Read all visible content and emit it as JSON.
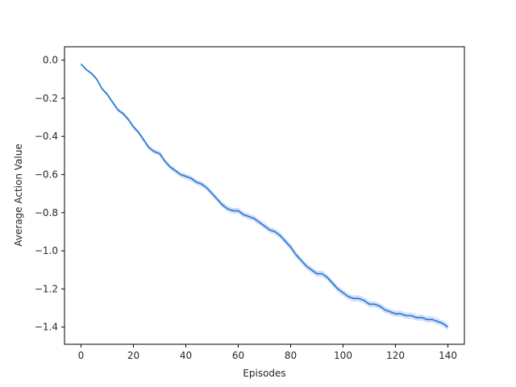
{
  "chart_data": {
    "type": "line",
    "title": "",
    "xlabel": "Episodes",
    "ylabel": "Average Action Value",
    "xlim": [
      -6.3,
      146.3
    ],
    "ylim": [
      -1.49,
      0.07
    ],
    "xticks": [
      0,
      20,
      40,
      60,
      80,
      100,
      120,
      140
    ],
    "yticks": [
      0.0,
      -0.2,
      -0.4,
      -0.6,
      -0.8,
      -1.0,
      -1.2,
      -1.4
    ],
    "ytick_labels": [
      "0.0",
      "−0.2",
      "−0.4",
      "−0.6",
      "−0.8",
      "−1.0",
      "−1.2",
      "−1.4"
    ],
    "xtick_labels": [
      "0",
      "20",
      "40",
      "60",
      "80",
      "100",
      "120",
      "140"
    ],
    "grid": false,
    "legend": "none",
    "colors": {
      "line": "#1f77d4",
      "band": "#c9d6f5"
    },
    "series": [
      {
        "x": [
          0,
          2,
          4,
          6,
          8,
          10,
          12,
          14,
          16,
          18,
          20,
          22,
          24,
          26,
          28,
          30,
          32,
          34,
          36,
          38,
          40,
          42,
          44,
          46,
          48,
          50,
          52,
          54,
          56,
          58,
          60,
          62,
          64,
          66,
          68,
          70,
          72,
          74,
          76,
          78,
          80,
          82,
          84,
          86,
          88,
          90,
          92,
          94,
          96,
          98,
          100,
          102,
          104,
          106,
          108,
          110,
          112,
          114,
          116,
          118,
          120,
          122,
          124,
          126,
          128,
          130,
          132,
          134,
          136,
          138,
          140
        ],
        "values": [
          -0.02,
          -0.05,
          -0.07,
          -0.1,
          -0.15,
          -0.18,
          -0.22,
          -0.26,
          -0.28,
          -0.31,
          -0.35,
          -0.38,
          -0.42,
          -0.46,
          -0.48,
          -0.49,
          -0.53,
          -0.56,
          -0.58,
          -0.6,
          -0.61,
          -0.62,
          -0.64,
          -0.65,
          -0.67,
          -0.7,
          -0.73,
          -0.76,
          -0.78,
          -0.79,
          -0.79,
          -0.81,
          -0.82,
          -0.83,
          -0.85,
          -0.87,
          -0.89,
          -0.9,
          -0.92,
          -0.95,
          -0.98,
          -1.02,
          -1.05,
          -1.08,
          -1.1,
          -1.12,
          -1.12,
          -1.14,
          -1.17,
          -1.2,
          -1.22,
          -1.24,
          -1.25,
          -1.25,
          -1.26,
          -1.28,
          -1.28,
          -1.29,
          -1.31,
          -1.32,
          -1.33,
          -1.33,
          -1.34,
          -1.34,
          -1.35,
          -1.35,
          -1.36,
          -1.36,
          -1.37,
          -1.38,
          -1.4
        ],
        "band_halfwidth": [
          0.005,
          0.006,
          0.007,
          0.008,
          0.009,
          0.009,
          0.01,
          0.01,
          0.011,
          0.011,
          0.011,
          0.012,
          0.012,
          0.012,
          0.012,
          0.013,
          0.013,
          0.013,
          0.013,
          0.013,
          0.014,
          0.014,
          0.014,
          0.014,
          0.014,
          0.014,
          0.014,
          0.015,
          0.015,
          0.015,
          0.015,
          0.015,
          0.015,
          0.015,
          0.015,
          0.015,
          0.015,
          0.015,
          0.016,
          0.016,
          0.016,
          0.016,
          0.016,
          0.016,
          0.016,
          0.016,
          0.016,
          0.016,
          0.016,
          0.016,
          0.016,
          0.016,
          0.016,
          0.016,
          0.016,
          0.016,
          0.016,
          0.016,
          0.016,
          0.016,
          0.016,
          0.016,
          0.016,
          0.016,
          0.016,
          0.016,
          0.016,
          0.016,
          0.016,
          0.016,
          0.016
        ]
      }
    ]
  }
}
